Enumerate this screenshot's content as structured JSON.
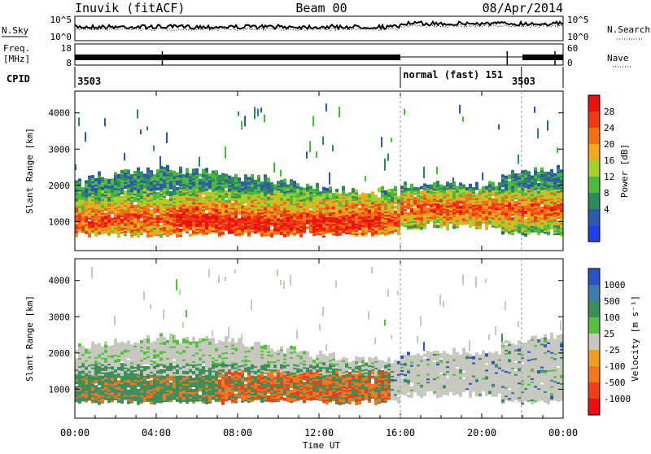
{
  "header": {
    "station": "Inuvik (fitACF)",
    "beam": "Beam 00",
    "date": "08/Apr/2014"
  },
  "noise_panel": {
    "left_label": "N.Sky",
    "right_label": "N.Search",
    "left_ticks": [
      "10^5",
      "10^0"
    ],
    "right_ticks": [
      "10^5",
      "10^0"
    ]
  },
  "freq_panel": {
    "left_label_1": "Freq.",
    "left_label_2": "[MHz]",
    "right_label": "Nave",
    "left_ticks": [
      "18",
      "8"
    ],
    "right_ticks": [
      "60",
      "0"
    ]
  },
  "cpid_panel": {
    "label": "CPID",
    "entries": [
      {
        "text": "3503",
        "hour": 0.05
      },
      {
        "text": "normal (fast) 151",
        "hour": 16.05
      },
      {
        "text": "3503",
        "hour": 21.4
      }
    ],
    "dividers": [
      16.0,
      21.95
    ]
  },
  "colors": {
    "power_scale": [
      "#1f3fe8",
      "#2c5aa8",
      "#2e8a5c",
      "#4cba3c",
      "#a6d02c",
      "#f2a81e",
      "#f07218",
      "#ee3a14",
      "#e8120e"
    ],
    "velocity_scale": [
      "#2c52c6",
      "#3a7ea8",
      "#3e8e5a",
      "#58c040",
      "#c8c8c0",
      "#f0a020",
      "#f07820",
      "#ee4018",
      "#e81010"
    ]
  },
  "chart_data": [
    {
      "type": "heatmap",
      "title": "Power",
      "ylabel": "Slant Range [km]",
      "ylim": [
        200,
        4600
      ],
      "xlim": [
        0,
        24
      ],
      "yticks": [
        "1000",
        "2000",
        "3000",
        "4000"
      ],
      "colorbar_label": "Power [dB]",
      "colorbar_ticks": [
        "4",
        "8",
        "12",
        "16",
        "20",
        "24",
        "28"
      ],
      "colorbar_range": [
        0,
        32
      ]
    },
    {
      "type": "heatmap",
      "title": "Velocity",
      "ylabel": "Slant Range [km]",
      "ylim": [
        200,
        4600
      ],
      "xlim": [
        0,
        24
      ],
      "yticks": [
        "1000",
        "2000",
        "3000",
        "4000"
      ],
      "colorbar_label": "Velocity [m s⁻¹]",
      "colorbar_ticks": [
        "1000",
        "500",
        "100",
        "25",
        "-25",
        "-100",
        "-500",
        "-1000"
      ]
    }
  ],
  "xaxis": {
    "ticks": [
      "00:00",
      "04:00",
      "08:00",
      "12:00",
      "16:00",
      "20:00",
      "00:00"
    ],
    "label": "Time UT"
  }
}
